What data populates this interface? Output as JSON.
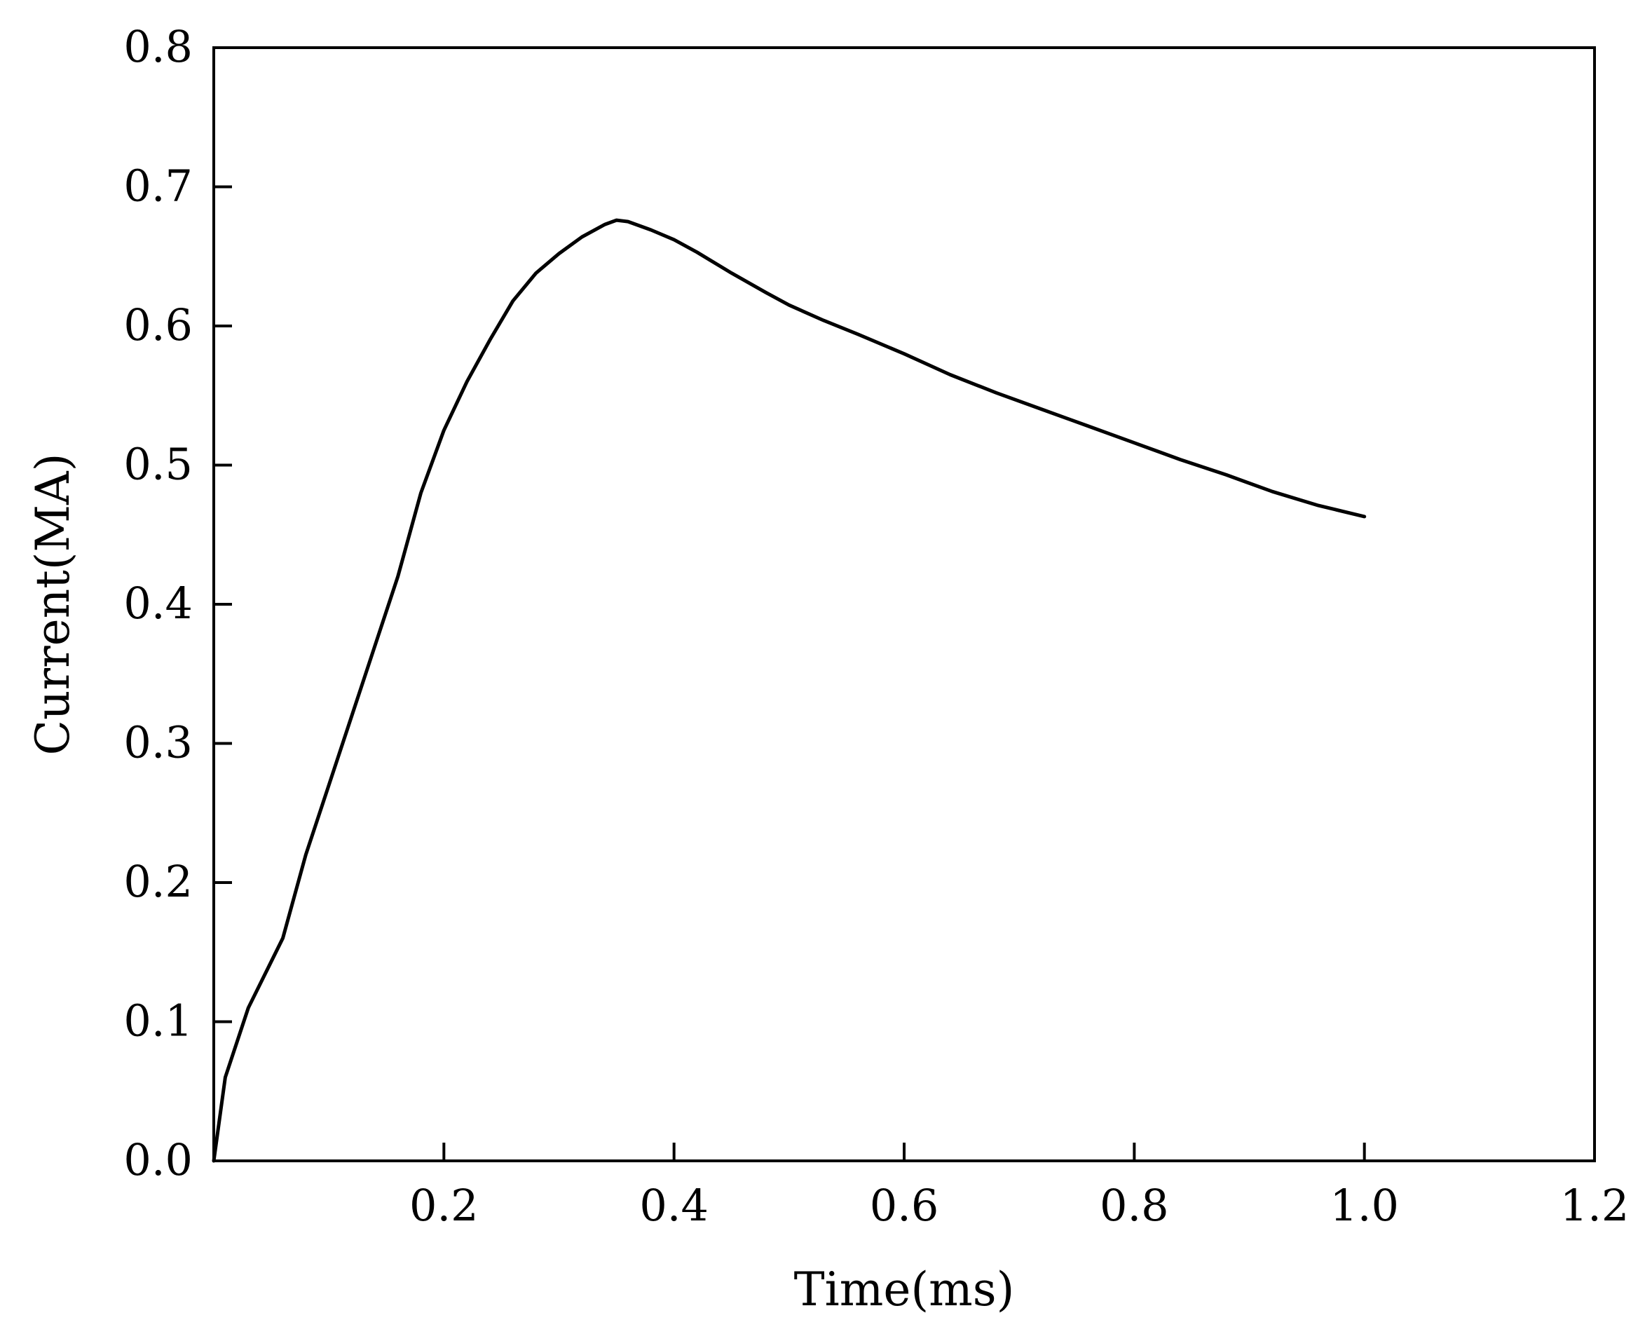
{
  "chart_data": {
    "type": "line",
    "title": "",
    "xlabel": "Time(ms)",
    "ylabel": "Current(MA)",
    "xlim": [
      0,
      1.2
    ],
    "ylim": [
      0,
      0.8
    ],
    "x_ticks": [
      0.2,
      0.4,
      0.6,
      0.8,
      1.0,
      1.2
    ],
    "x_tick_labels": [
      "0.2",
      "0.4",
      "0.6",
      "0.8",
      "1.0",
      "1.2"
    ],
    "y_ticks": [
      0,
      0.1,
      0.2,
      0.3,
      0.4,
      0.5,
      0.6,
      0.7,
      0.8
    ],
    "y_tick_labels": [
      "0.0",
      "0.1",
      "0.2",
      "0.3",
      "0.4",
      "0.5",
      "0.6",
      "0.7",
      "0.8"
    ],
    "grid": false,
    "line_color": "#000000",
    "series": [
      {
        "x": [
          0,
          0.01,
          0.03,
          0.06,
          0.08,
          0.1,
          0.12,
          0.14,
          0.16,
          0.18,
          0.2,
          0.22,
          0.24,
          0.26,
          0.28,
          0.3,
          0.32,
          0.34,
          0.35,
          0.36,
          0.38,
          0.4,
          0.42,
          0.45,
          0.48,
          0.5,
          0.53,
          0.56,
          0.6,
          0.64,
          0.68,
          0.72,
          0.76,
          0.8,
          0.84,
          0.88,
          0.92,
          0.96,
          1.0
        ],
        "y": [
          0,
          0.06,
          0.11,
          0.16,
          0.22,
          0.27,
          0.32,
          0.37,
          0.42,
          0.48,
          0.525,
          0.56,
          0.59,
          0.618,
          0.638,
          0.652,
          0.664,
          0.673,
          0.676,
          0.675,
          0.669,
          0.662,
          0.653,
          0.638,
          0.624,
          0.615,
          0.604,
          0.594,
          0.58,
          0.565,
          0.552,
          0.54,
          0.528,
          0.516,
          0.504,
          0.493,
          0.481,
          0.471,
          0.463
        ]
      }
    ]
  }
}
